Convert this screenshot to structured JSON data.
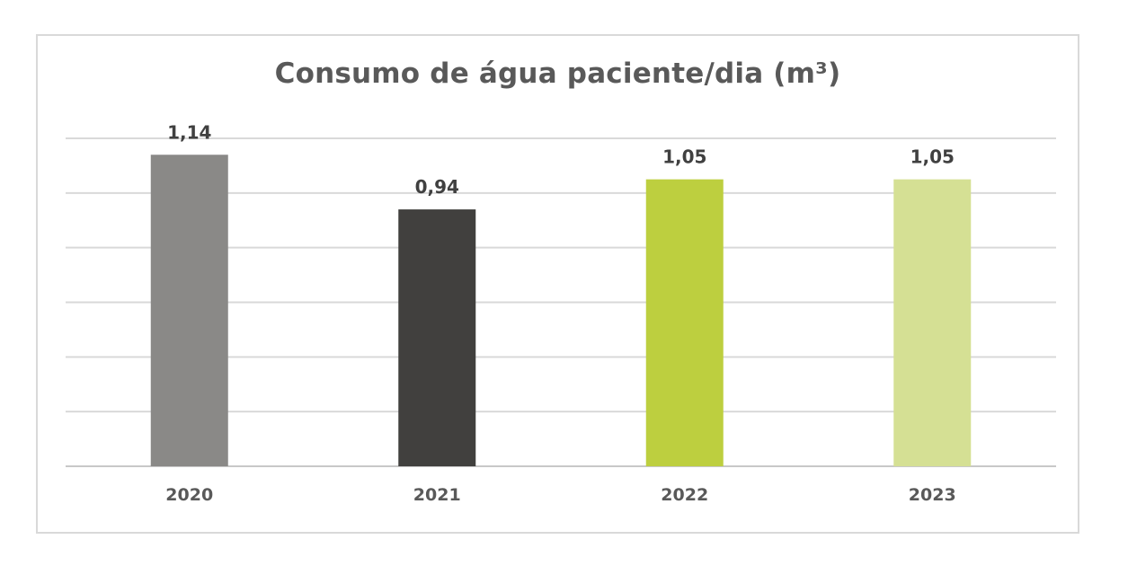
{
  "chart_data": {
    "type": "bar",
    "title": "Consumo de água paciente/dia (m³)",
    "categories": [
      "2020",
      "2021",
      "2022",
      "2023"
    ],
    "values": [
      1.14,
      0.94,
      1.05,
      1.05
    ],
    "value_labels": [
      "1,14",
      "0,94",
      "1,05",
      "1,05"
    ],
    "colors": [
      "#8a8987",
      "#41403e",
      "#bdcf3f",
      "#d5e094"
    ],
    "ylim": [
      0,
      1.2
    ],
    "grid": true,
    "legend": "none",
    "xlabel": "",
    "ylabel": ""
  }
}
